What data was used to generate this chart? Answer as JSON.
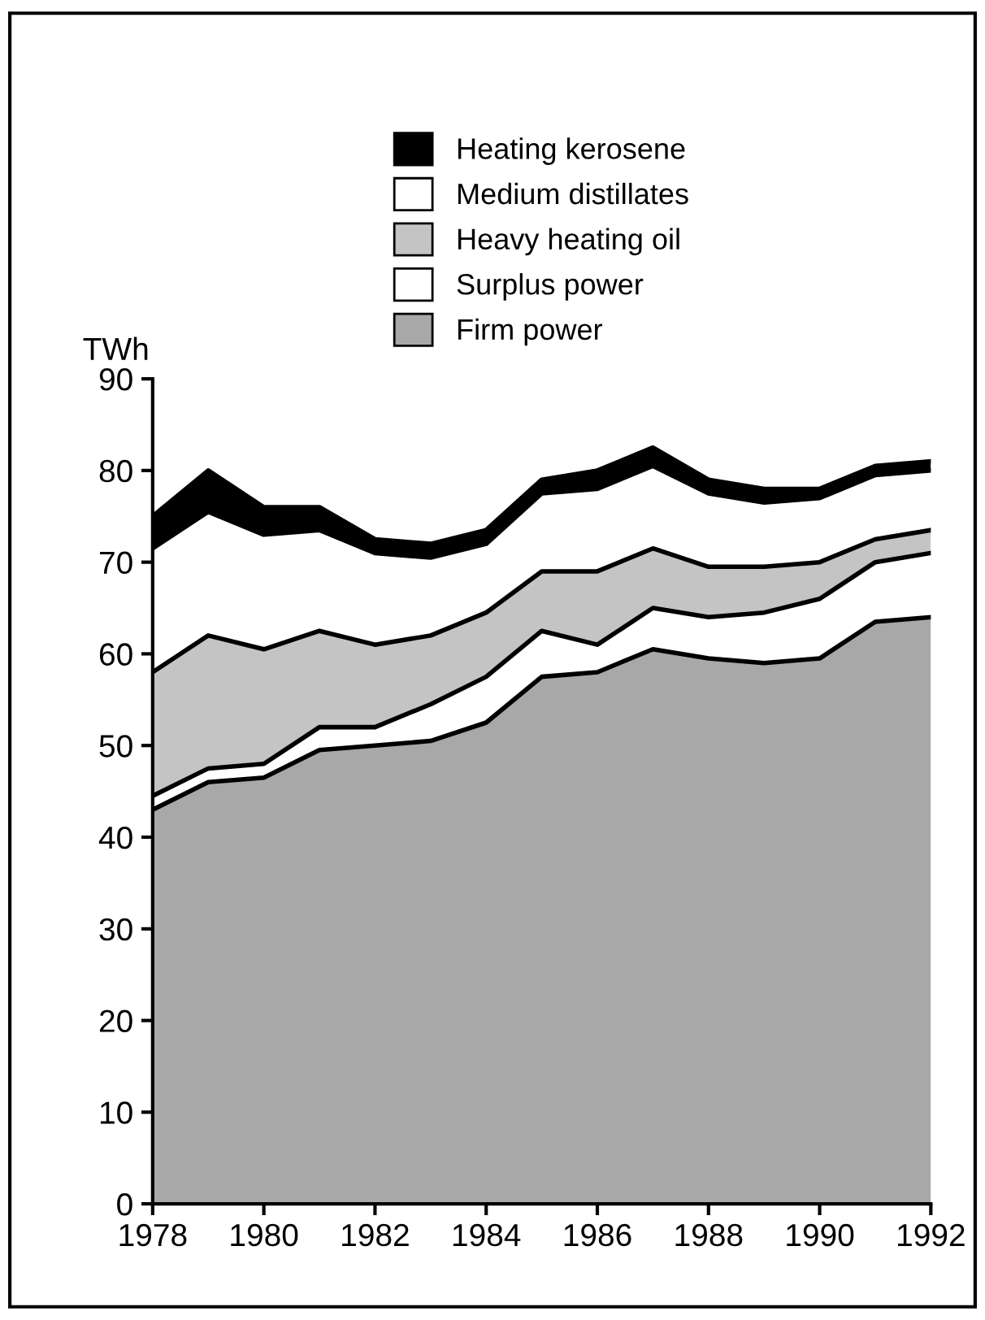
{
  "chart_data": {
    "type": "area",
    "stacked": true,
    "ylabel": "TWh",
    "x": [
      1978,
      1979,
      1980,
      1981,
      1982,
      1983,
      1984,
      1985,
      1986,
      1987,
      1988,
      1989,
      1990,
      1991,
      1992
    ],
    "series": [
      {
        "name": "Firm power",
        "color": "#a8a8a8",
        "values": [
          43,
          46,
          46.5,
          49.5,
          50,
          50.5,
          52.5,
          57.5,
          58,
          60.5,
          59.5,
          59,
          59.5,
          63.5,
          64
        ]
      },
      {
        "name": "Surplus power",
        "color": "#ffffff",
        "values": [
          1.5,
          1.5,
          1.5,
          2.5,
          2,
          4,
          5,
          5,
          3,
          4.5,
          4.5,
          5.5,
          6.5,
          6.5,
          7
        ]
      },
      {
        "name": "Heavy heating oil",
        "color": "#c4c4c4",
        "values": [
          13.5,
          14.5,
          12.5,
          10.5,
          9,
          7.5,
          7,
          6.5,
          8,
          6.5,
          5.5,
          5,
          4,
          2.5,
          2.5
        ]
      },
      {
        "name": "Medium distillates",
        "color": "#ffffff",
        "values": [
          13.5,
          13.5,
          12.5,
          11,
          10,
          8.5,
          7.5,
          8.5,
          9,
          9,
          8,
          7,
          7,
          7,
          6.5
        ]
      },
      {
        "name": "Heating kerosene",
        "color": "#000000",
        "values": [
          3.5,
          4.5,
          3,
          2.5,
          1.5,
          1.5,
          1.5,
          1.5,
          2,
          2,
          1.5,
          1.5,
          1,
          1,
          1
        ]
      }
    ],
    "xlim": [
      1978,
      1992
    ],
    "ylim": [
      0,
      90
    ],
    "xticks": [
      1978,
      1980,
      1982,
      1984,
      1986,
      1988,
      1990,
      1992
    ],
    "yticks": [
      0,
      10,
      20,
      30,
      40,
      50,
      60,
      70,
      80,
      90
    ],
    "grid": false,
    "legend": "top"
  }
}
